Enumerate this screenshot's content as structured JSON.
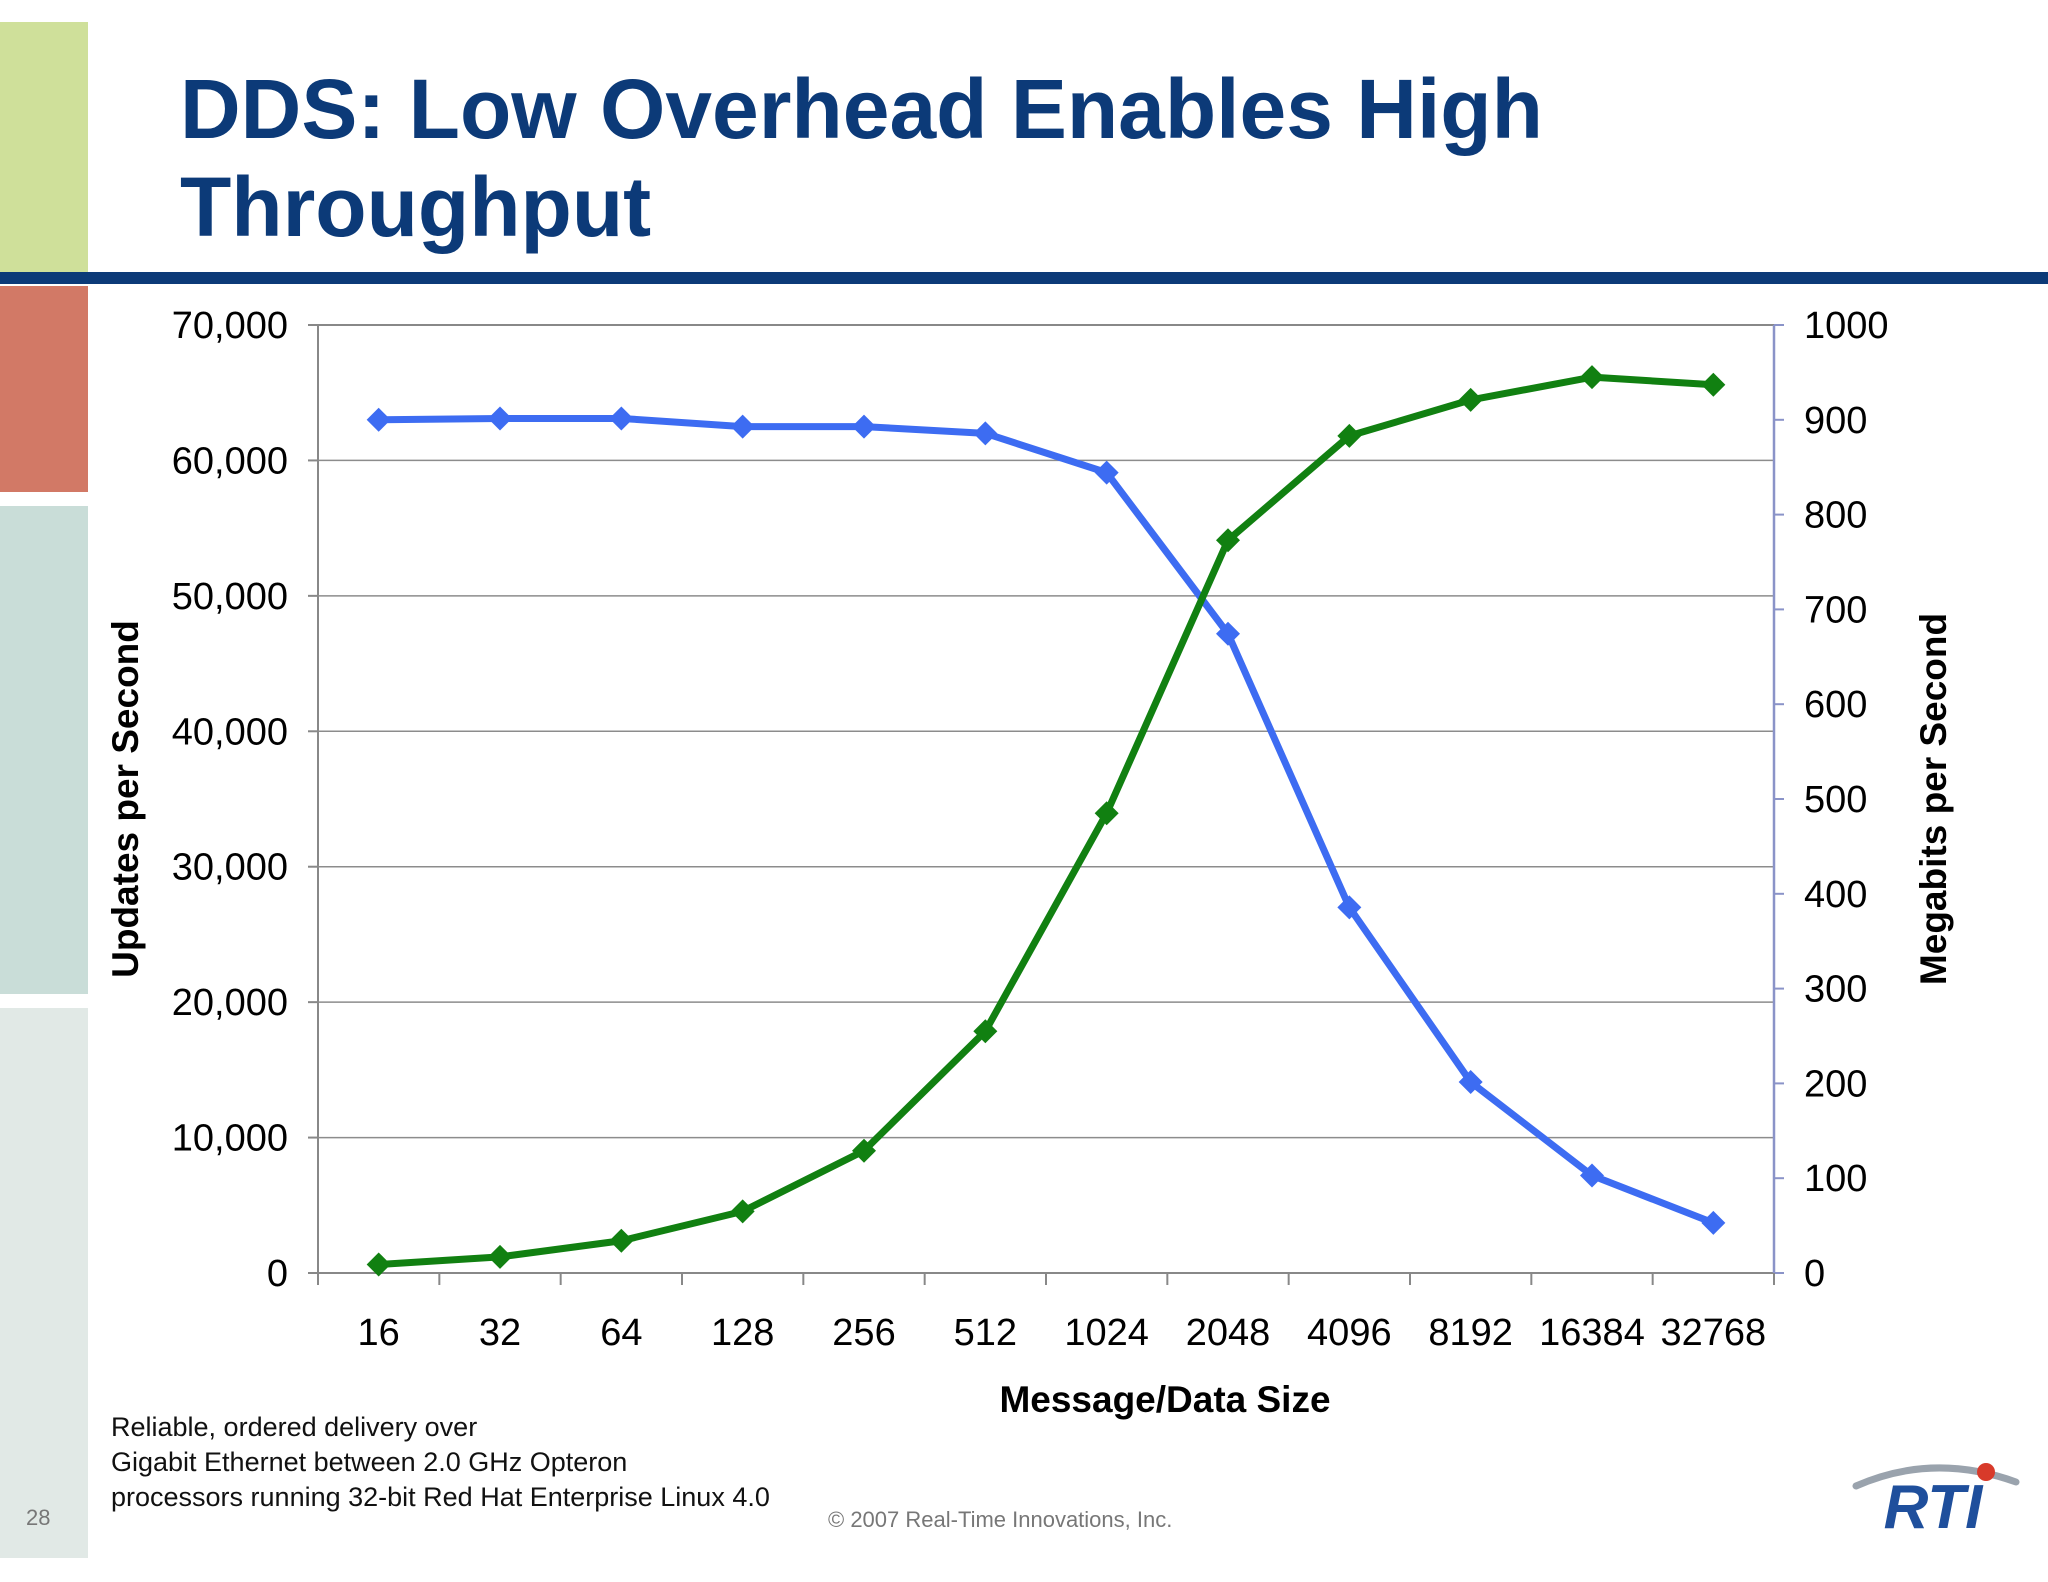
{
  "slide": {
    "title_line1": "DDS: Low Overhead Enables High",
    "title_line2": "Throughput",
    "note_lines": [
      "Reliable, ordered delivery over",
      "Gigabit Ethernet between 2.0 GHz Opteron",
      "processors running 32-bit Red Hat Enterprise Linux 4.0"
    ],
    "page_number": "28",
    "copyright": "© 2007 Real-Time Innovations, Inc.",
    "logo_text": "RTI",
    "colors": {
      "title": "#0c3a78",
      "rule": "#0c3a78",
      "band_1": "#cfe09a",
      "band_2": "#d27966",
      "band_3": "#c9ddd8",
      "band_4": "#e1e9e6"
    }
  },
  "chart_data": {
    "type": "line",
    "title": "",
    "xlabel": "Message/Data Size",
    "ylabel": "Updates per Second",
    "y2label": "Megabits per Second",
    "categories": [
      "16",
      "32",
      "64",
      "128",
      "256",
      "512",
      "1024",
      "2048",
      "4096",
      "8192",
      "16384",
      "32768"
    ],
    "ylim": [
      0,
      70000
    ],
    "yticks": [
      "0",
      "10,000",
      "20,000",
      "30,000",
      "40,000",
      "50,000",
      "60,000",
      "70,000"
    ],
    "y2lim": [
      0,
      1000
    ],
    "y2ticks": [
      "0",
      "100",
      "200",
      "300",
      "400",
      "500",
      "600",
      "700",
      "800",
      "900",
      "1000"
    ],
    "grid": true,
    "series": [
      {
        "axis": "left",
        "color": "#3d6cf2",
        "marker": "diamond",
        "values": [
          63000,
          63100,
          63100,
          62500,
          62500,
          62000,
          59100,
          47200,
          27000,
          14100,
          7200,
          3700
        ]
      },
      {
        "axis": "right",
        "color": "#118011",
        "marker": "diamond",
        "values": [
          9,
          17,
          34,
          65,
          129,
          255,
          485,
          773,
          883,
          921,
          945,
          937
        ]
      }
    ]
  }
}
